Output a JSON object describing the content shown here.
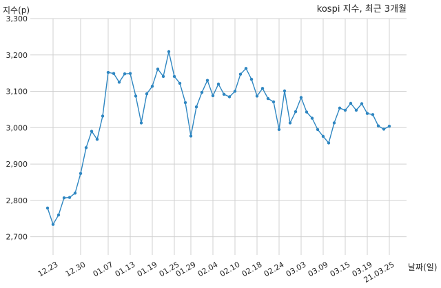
{
  "chart_data": {
    "type": "line",
    "title": "kospi 지수, 최근 3개월",
    "ylabel": "지수(p)",
    "xlabel": "날짜(일)",
    "ylim": [
      2650,
      3300
    ],
    "yticks": [
      2700,
      2800,
      2900,
      3000,
      3100,
      3200,
      3300
    ],
    "ytick_labels": [
      "2,700",
      "2,800",
      "2,900",
      "3,000",
      "3,100",
      "3,200",
      "3,300"
    ],
    "xtick_labels": [
      "12.23",
      "12.30",
      "01.07",
      "01.13",
      "01.19",
      "01.25",
      "01.29",
      "02.04",
      "02.10",
      "02.18",
      "02.24",
      "03.03",
      "03.09",
      "03.15",
      "03.19",
      "21.03.25"
    ],
    "xtick_indices": [
      1,
      6,
      11,
      15,
      19,
      23,
      26,
      30,
      34,
      38,
      42,
      46,
      50,
      54,
      58,
      62
    ],
    "grid": true,
    "line_color": "#2e86c1",
    "series": [
      {
        "values": [
          2779,
          2734,
          2760,
          2807,
          2808,
          2820,
          2874,
          2945,
          2990,
          2968,
          3032,
          3152,
          3149,
          3125,
          3148,
          3149,
          3087,
          3013,
          3093,
          3114,
          3161,
          3141,
          3209,
          3141,
          3122,
          3069,
          2977,
          3057,
          3097,
          3130,
          3088,
          3120,
          3092,
          3085,
          3100,
          3147,
          3163,
          3133,
          3087,
          3108,
          3080,
          3071,
          2995,
          3101,
          3013,
          3044,
          3083,
          3043,
          3026,
          2995,
          2976,
          2958,
          3013,
          3054,
          3048,
          3067,
          3048,
          3066,
          3039,
          3036,
          3005,
          2996,
          3004
        ]
      }
    ]
  }
}
